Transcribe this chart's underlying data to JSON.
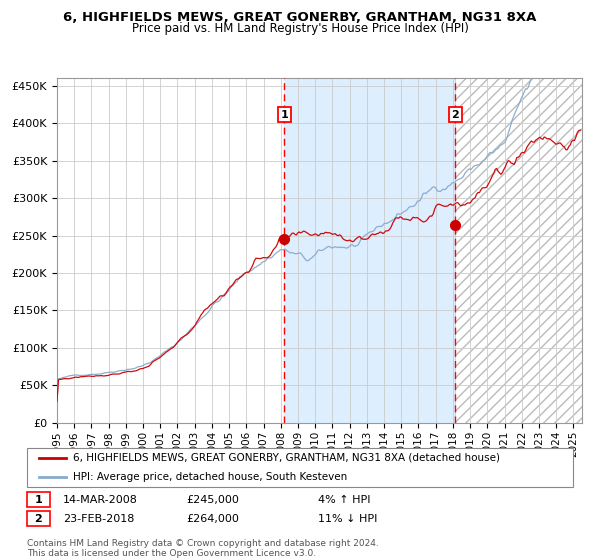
{
  "title": "6, HIGHFIELDS MEWS, GREAT GONERBY, GRANTHAM, NG31 8XA",
  "subtitle": "Price paid vs. HM Land Registry's House Price Index (HPI)",
  "legend_line1": "6, HIGHFIELDS MEWS, GREAT GONERBY, GRANTHAM, NG31 8XA (detached house)",
  "legend_line2": "HPI: Average price, detached house, South Kesteven",
  "annotation1_date": "14-MAR-2008",
  "annotation1_price": "£245,000",
  "annotation1_hpi": "4% ↑ HPI",
  "annotation2_date": "23-FEB-2018",
  "annotation2_price": "£264,000",
  "annotation2_hpi": "11% ↓ HPI",
  "purchase1_year": 2008.2,
  "purchase1_value": 245000,
  "purchase2_year": 2018.15,
  "purchase2_value": 264000,
  "ylim_min": 0,
  "ylim_max": 460000,
  "xlim_min": 1995,
  "xlim_max": 2025.5,
  "background_color": "#ffffff",
  "plot_bg_color": "#ffffff",
  "grid_color": "#cccccc",
  "red_line_color": "#cc0000",
  "blue_line_color": "#88aacc",
  "shaded_color": "#ddeeff",
  "hatch_color": "#bbbbbb",
  "footer_text": "Contains HM Land Registry data © Crown copyright and database right 2024.\nThis data is licensed under the Open Government Licence v3.0."
}
